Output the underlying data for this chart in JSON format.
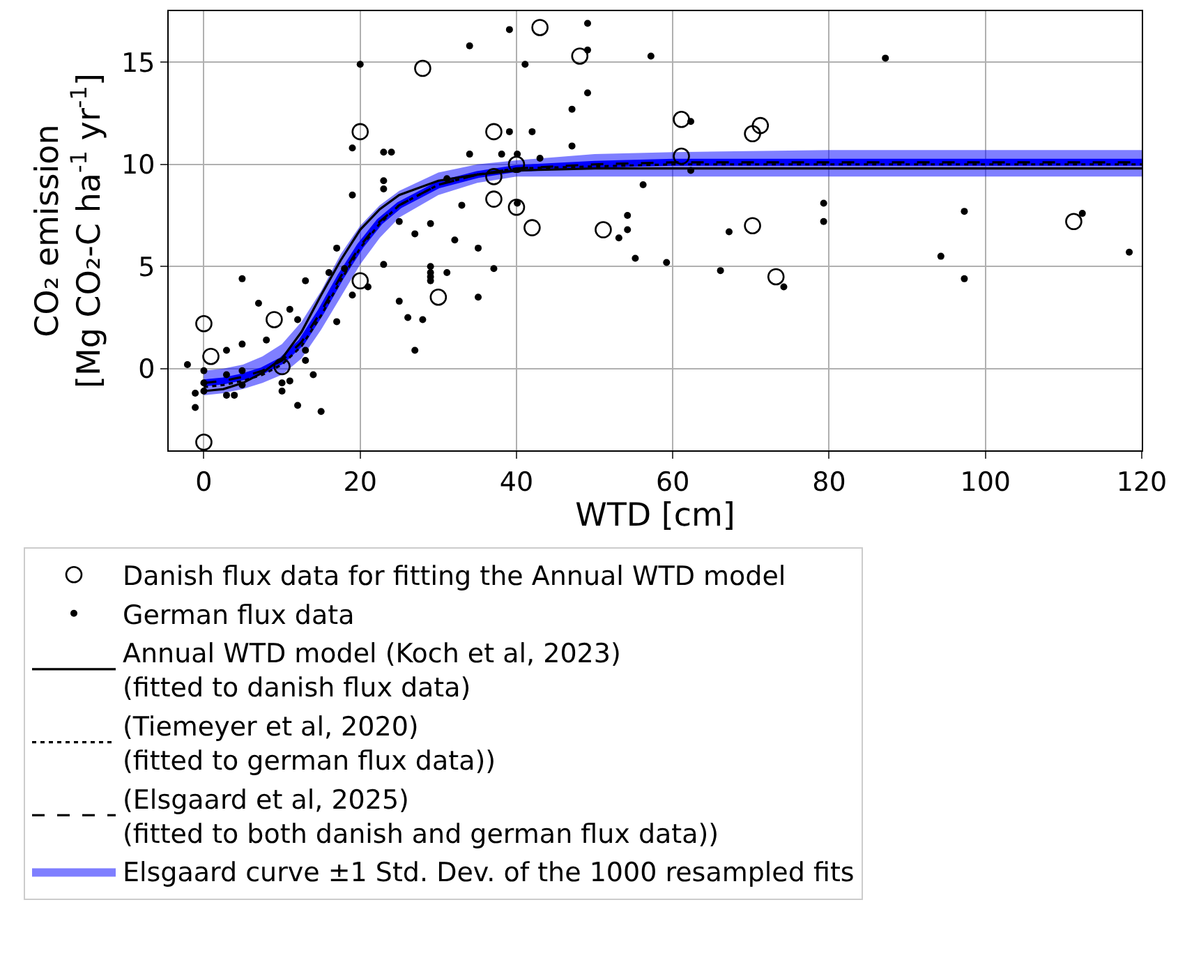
{
  "chart_data": {
    "type": "scatter",
    "xlabel": "WTD [cm]",
    "ylabel": "CO₂ emission\n[Mg CO₂-C ha$^{-1}$ yr$^{-1}$]",
    "xlim": [
      -4.5,
      120
    ],
    "xticks": [
      0,
      20,
      40,
      60,
      80,
      100,
      120
    ],
    "ylim": [
      -4,
      17.5
    ],
    "yticks": [
      0,
      5,
      10,
      15
    ],
    "grid": true,
    "legend": "bottom",
    "series": [
      {
        "name": "Danish flux data for fitting the Annual WTD model",
        "marker": "circle",
        "color": "#000000",
        "x": [
          0,
          0.9,
          0,
          9,
          10,
          20,
          20,
          28,
          30,
          37.1,
          37.1,
          37.1,
          40,
          40,
          42,
          43,
          48.1,
          51.1,
          61.1,
          61.1,
          70.2,
          71.2,
          70.2,
          73.2,
          111.3
        ],
        "values": [
          2.2,
          0.6,
          -3.6,
          2.4,
          0.1,
          11.6,
          4.3,
          14.7,
          3.5,
          11.6,
          9.4,
          8.3,
          10,
          7.9,
          6.9,
          16.7,
          15.3,
          6.8,
          12.2,
          10.4,
          11.5,
          11.9,
          7.0,
          4.5,
          7.2
        ]
      },
      {
        "name": "German flux data",
        "marker": "circle",
        "color": "#000000",
        "x": [
          -2.1,
          -1.1,
          -1.1,
          0,
          0,
          0,
          2.9,
          2.9,
          3.9,
          2.9,
          4.9,
          4.9,
          4.9,
          4.9,
          7,
          8,
          11,
          11,
          10,
          10,
          12,
          12,
          13,
          13,
          13,
          14,
          15,
          17,
          16,
          18,
          17,
          19,
          19,
          19,
          20,
          21,
          23,
          24,
          23,
          23,
          23,
          25,
          25,
          26.1,
          27,
          27,
          28,
          29,
          29,
          29,
          29,
          29,
          31.1,
          31.1,
          32.1,
          33,
          34,
          34,
          35.1,
          35.1,
          37.1,
          38.1,
          39.1,
          39.1,
          40.1,
          40.1,
          41.1,
          49.1,
          49.1,
          49.1,
          47.1,
          42,
          47.1,
          43,
          54.2,
          54.2,
          53.1,
          55.2,
          56.2,
          57.2,
          59.2,
          62.3,
          62.3,
          66.1,
          67.2,
          74.2,
          79.3,
          79.3,
          87.2,
          94.3,
          97.3,
          97.3,
          112.4,
          118.4
        ],
        "values": [
          0.2,
          -1.2,
          -1.9,
          -0.1,
          -0.7,
          -1.1,
          0.9,
          -1.3,
          -1.3,
          -0.3,
          1.2,
          -0.1,
          4.4,
          -0.8,
          3.2,
          1.4,
          2.9,
          -0.6,
          -0.7,
          -1.1,
          2.4,
          -1.8,
          4.3,
          0.9,
          0.4,
          -0.3,
          -2.1,
          5.9,
          4.7,
          4.9,
          2.3,
          8.5,
          10.8,
          3.6,
          14.9,
          4.0,
          10.6,
          10.6,
          9.2,
          8.8,
          5.1,
          7.2,
          3.3,
          2.5,
          6.6,
          0.9,
          2.4,
          7.1,
          5.0,
          4.7,
          4.5,
          4.3,
          9.3,
          4.7,
          6.3,
          8.0,
          10.5,
          15.8,
          5.9,
          3.5,
          4.9,
          10.5,
          16.6,
          11.6,
          10.5,
          8.1,
          14.9,
          16.9,
          15.6,
          13.5,
          12.7,
          11.6,
          10.9,
          10.3,
          7.5,
          6.8,
          6.4,
          5.4,
          9.0,
          15.3,
          5.2,
          12.1,
          9.7,
          4.8,
          6.7,
          4.0,
          8.1,
          7.2,
          15.2,
          5.5,
          7.7,
          4.4,
          7.6,
          5.7
        ]
      },
      {
        "name": "Annual WTD model (Koch et al, 2023)\n(fitted to danish flux data)",
        "type": "line",
        "line_style": "solid",
        "color": "#000000",
        "x": [
          0,
          2.5,
          5,
          7.5,
          10,
          12.5,
          15,
          17.5,
          20,
          22.5,
          25,
          30,
          35,
          40,
          50,
          60,
          80,
          120
        ],
        "values": [
          -1.1,
          -1.0,
          -0.7,
          -0.2,
          0.5,
          1.8,
          3.6,
          5.3,
          6.8,
          7.8,
          8.5,
          9.2,
          9.5,
          9.7,
          9.8,
          9.8,
          9.8,
          9.8
        ]
      },
      {
        "name": "(Tiemeyer et al, 2020)\n(fitted to german flux data))",
        "type": "line",
        "line_style": "dotted",
        "color": "#000000",
        "x": [
          0,
          2.5,
          5,
          7.5,
          10,
          12.5,
          15,
          17.5,
          20,
          22.5,
          25,
          30,
          35,
          40,
          50,
          60,
          80,
          120
        ],
        "values": [
          -0.9,
          -0.8,
          -0.6,
          -0.3,
          0.2,
          1.1,
          2.6,
          4.3,
          5.9,
          7.1,
          8.0,
          9.0,
          9.5,
          9.8,
          9.9,
          10.0,
          10.0,
          10.0
        ]
      },
      {
        "name": "(Elsgaard et al, 2025)\n(fitted to both danish and german flux data))",
        "type": "line",
        "line_style": "dashed",
        "color": "#000000",
        "x": [
          0,
          2.5,
          5,
          7.5,
          10,
          12.5,
          15,
          17.5,
          20,
          22.5,
          25,
          30,
          35,
          40,
          50,
          60,
          80,
          120
        ],
        "values": [
          -0.7,
          -0.6,
          -0.4,
          -0.1,
          0.4,
          1.3,
          2.8,
          4.5,
          6.0,
          7.2,
          8.0,
          9.0,
          9.5,
          9.8,
          10.0,
          10.1,
          10.1,
          10.1
        ]
      },
      {
        "name": "Elsgaard curve ±1 Std. Dev. of the 1000 resampled fits",
        "type": "line",
        "color": "#0000ff",
        "x": [
          0,
          2.5,
          5,
          7.5,
          10,
          12.5,
          15,
          17.5,
          20,
          22.5,
          25,
          30,
          35,
          40,
          50,
          60,
          80,
          120
        ],
        "values": [
          -0.7,
          -0.6,
          -0.4,
          -0.1,
          0.4,
          1.3,
          2.8,
          4.5,
          6.0,
          7.2,
          8.0,
          9.0,
          9.5,
          9.8,
          10.0,
          10.1,
          10.1,
          10.1
        ],
        "lower": [
          -1.3,
          -1.2,
          -1.0,
          -0.7,
          -0.3,
          0.5,
          1.9,
          3.5,
          5.1,
          6.4,
          7.4,
          8.5,
          9.1,
          9.4,
          9.4,
          9.4,
          9.4,
          9.4
        ],
        "upper": [
          -0.1,
          0.0,
          0.2,
          0.6,
          1.2,
          2.3,
          3.8,
          5.6,
          7.0,
          8.0,
          8.7,
          9.6,
          10.0,
          10.2,
          10.5,
          10.6,
          10.7,
          10.7
        ]
      }
    ]
  }
}
